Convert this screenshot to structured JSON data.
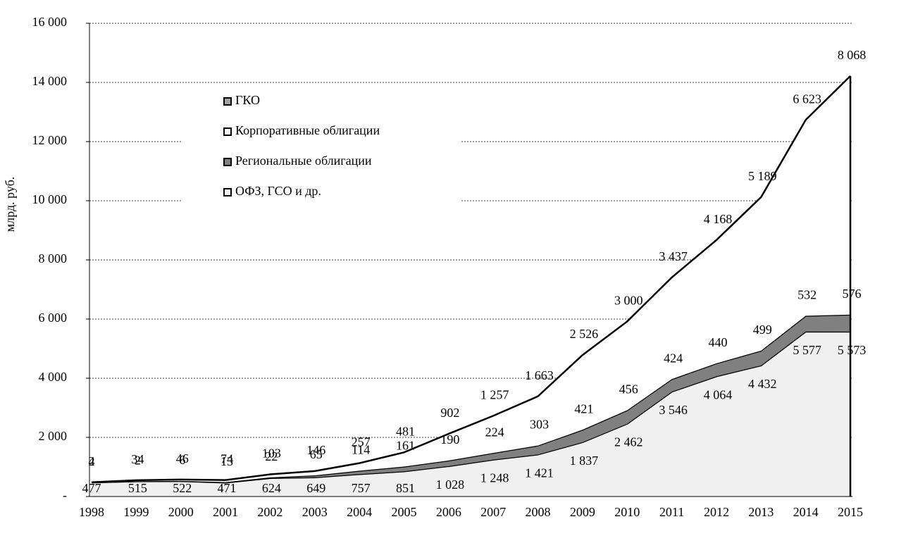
{
  "chart_data": {
    "type": "stacked_area",
    "y_label": "млрд. руб.",
    "categories": [
      "1998",
      "1999",
      "2000",
      "2001",
      "2002",
      "2003",
      "2004",
      "2005",
      "2006",
      "2007",
      "2008",
      "2009",
      "2010",
      "2011",
      "2012",
      "2013",
      "2014",
      "2015"
    ],
    "series": [
      {
        "name": "ОФЗ, ГСО и др.",
        "color": "#f0f0f0",
        "values": [
          477,
          515,
          522,
          471,
          624,
          649,
          757,
          851,
          1028,
          1248,
          1421,
          1837,
          2462,
          3546,
          4064,
          4432,
          5577,
          5573
        ],
        "value_labels": [
          "477",
          "515",
          "522",
          "471",
          "624",
          "649",
          "757",
          "851",
          "1 028",
          "1 248",
          "1 421",
          "1 837",
          "2 462",
          "3 546",
          "4 064",
          "4 432",
          "5 577",
          "5 573"
        ]
      },
      {
        "name": "Региональные облигации",
        "color": "#808080",
        "values": [
          2,
          2,
          6,
          13,
          22,
          65,
          114,
          161,
          190,
          224,
          303,
          421,
          456,
          424,
          440,
          499,
          532,
          576
        ]
      },
      {
        "name": "Корпоративные облигации",
        "color": "#ffffff",
        "values": [
          4,
          34,
          46,
          74,
          103,
          146,
          257,
          481,
          902,
          1257,
          1663,
          2526,
          3000,
          3437,
          4168,
          5189,
          6623,
          8068
        ],
        "value_labels": [
          "4",
          "34",
          "46",
          "74",
          "103",
          "146",
          "257",
          "481",
          "902",
          "1 257",
          "1 663",
          "2 526",
          "3 000",
          "3 437",
          "4 168",
          "5 189",
          "6 623",
          "8 068"
        ]
      },
      {
        "name": "ГКО",
        "color": "#a0a0a0",
        "values": [
          null,
          null,
          null,
          null,
          null,
          null,
          null,
          null,
          null,
          null,
          null,
          null,
          null,
          null,
          null,
          null,
          null,
          null
        ]
      }
    ],
    "ylim": [
      0,
      16000
    ],
    "yticks": [
      {
        "value": 0,
        "label": "-"
      },
      {
        "value": 2000,
        "label": "2 000"
      },
      {
        "value": 4000,
        "label": "4 000"
      },
      {
        "value": 6000,
        "label": "6 000"
      },
      {
        "value": 8000,
        "label": "8 000"
      },
      {
        "value": 10000,
        "label": "10 000"
      },
      {
        "value": 12000,
        "label": "12 000"
      },
      {
        "value": 14000,
        "label": "14 000"
      },
      {
        "value": 16000,
        "label": "16 000"
      }
    ],
    "grid": true
  }
}
